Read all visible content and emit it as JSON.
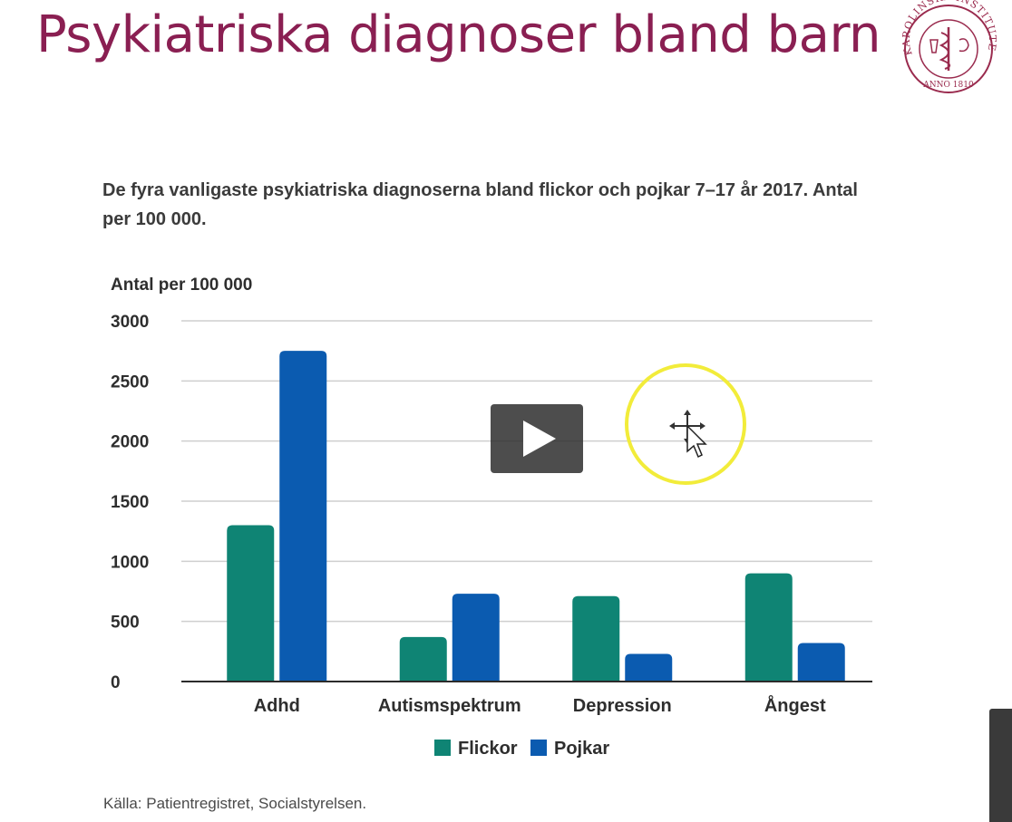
{
  "slide": {
    "title": "Psykiatriska diagnoser bland barn",
    "logo": {
      "icon": "karolinska-institutet-seal",
      "text": "KAROLINSKA INSTITUTET ANNO 1810"
    }
  },
  "chart_data": {
    "type": "bar",
    "title": "De fyra vanligaste psykiatriska diagnoserna bland flickor och pojkar 7–17 år 2017. Antal per 100 000.",
    "ylabel": "Antal per 100 000",
    "xlabel": "",
    "ylim": [
      0,
      3000
    ],
    "yticks": [
      "3000",
      "2500",
      "2000",
      "1500",
      "1000",
      "500",
      "0"
    ],
    "categories": [
      "Adhd",
      "Autismspektrum",
      "Depression",
      "Ångest"
    ],
    "series": [
      {
        "name": "Flickor",
        "color": "#0f8474",
        "values": [
          1300,
          370,
          710,
          900
        ]
      },
      {
        "name": "Pojkar",
        "color": "#0b5bb0",
        "values": [
          2750,
          730,
          230,
          320
        ]
      }
    ],
    "grid": true,
    "legend": "bottom"
  },
  "source": "Källa: Patientregistret, Socialstyrelsen.",
  "video": {
    "play_icon": "play-icon",
    "cursor_icon": "move-cursor-icon",
    "highlight_color": "#f2ec3a"
  }
}
